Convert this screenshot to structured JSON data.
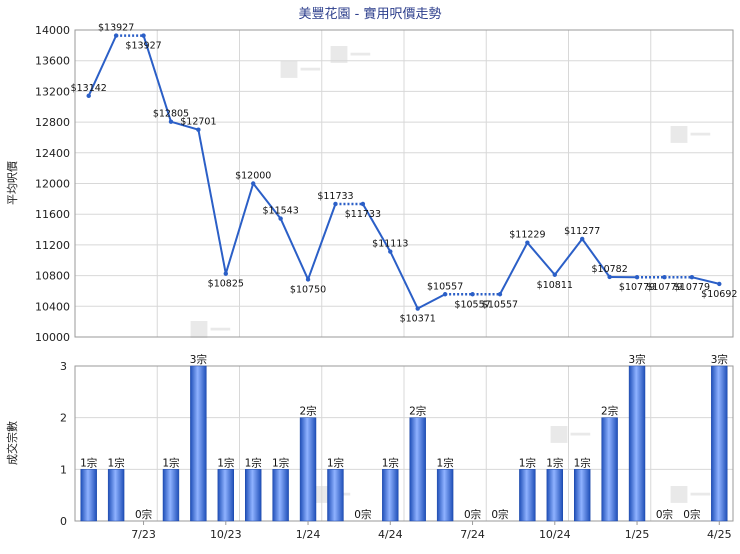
{
  "chart_data": [
    {
      "type": "line",
      "title": "美豐花園 - 實用呎價走勢",
      "ylabel": "平均呎價",
      "ylim": [
        10000,
        14000
      ],
      "yticks": [
        10000,
        10400,
        10800,
        11200,
        11600,
        12000,
        12400,
        12800,
        13200,
        13600,
        14000
      ],
      "x_tick_labels": [
        "7/23",
        "10/23",
        "1/24",
        "4/24",
        "7/24",
        "10/24",
        "1/25",
        "4/25"
      ],
      "color": "#2b5fc7",
      "grid": true,
      "points": [
        {
          "v": 13142,
          "label": "$13142"
        },
        {
          "v": 13927,
          "label": "$13927"
        },
        {
          "v": 13927,
          "label": "$13927",
          "dotted_before": true
        },
        {
          "v": 12805,
          "label": "$12805"
        },
        {
          "v": 12701,
          "label": "$12701"
        },
        {
          "v": 10825,
          "label": "$10825"
        },
        {
          "v": 12000,
          "label": "$12000"
        },
        {
          "v": 11543,
          "label": "$11543"
        },
        {
          "v": 10750,
          "label": "$10750"
        },
        {
          "v": 11733,
          "label": "$11733"
        },
        {
          "v": 11733,
          "label": "$11733",
          "dotted_before": true
        },
        {
          "v": 11113,
          "label": "$11113"
        },
        {
          "v": 10371,
          "label": "$10371"
        },
        {
          "v": 10557,
          "label": "$10557"
        },
        {
          "v": 10557,
          "label": "$10557",
          "dotted_before": true
        },
        {
          "v": 10557,
          "label": "$10557",
          "dotted_before": true
        },
        {
          "v": 11229,
          "label": "$11229"
        },
        {
          "v": 10811,
          "label": "$10811"
        },
        {
          "v": 11277,
          "label": "$11277"
        },
        {
          "v": 10782,
          "label": "$10782"
        },
        {
          "v": 10779,
          "label": "$10779"
        },
        {
          "v": 10779,
          "label": "$10779",
          "dotted_before": true
        },
        {
          "v": 10779,
          "label": "$10779",
          "dotted_before": true
        },
        {
          "v": 10692,
          "label": "$10692"
        }
      ]
    },
    {
      "type": "bar",
      "ylabel": "成交宗數",
      "ylim": [
        0,
        3
      ],
      "yticks": [
        0,
        1,
        2,
        3
      ],
      "x_tick_labels": [
        "7/23",
        "10/23",
        "1/24",
        "4/24",
        "7/24",
        "10/24",
        "1/25",
        "4/25"
      ],
      "values": [
        1,
        1,
        0,
        1,
        3,
        1,
        1,
        1,
        2,
        1,
        0,
        1,
        2,
        1,
        0,
        0,
        1,
        1,
        1,
        2,
        3,
        0,
        0,
        3
      ],
      "value_labels": [
        "1宗",
        "1宗",
        "0宗",
        "1宗",
        "3宗",
        "1宗",
        "1宗",
        "1宗",
        "2宗",
        "1宗",
        "0宗",
        "1宗",
        "2宗",
        "1宗",
        "0宗",
        "0宗",
        "1宗",
        "1宗",
        "1宗",
        "2宗",
        "3宗",
        "0宗",
        "0宗",
        "3宗"
      ],
      "color": "#3a6fd8"
    }
  ]
}
